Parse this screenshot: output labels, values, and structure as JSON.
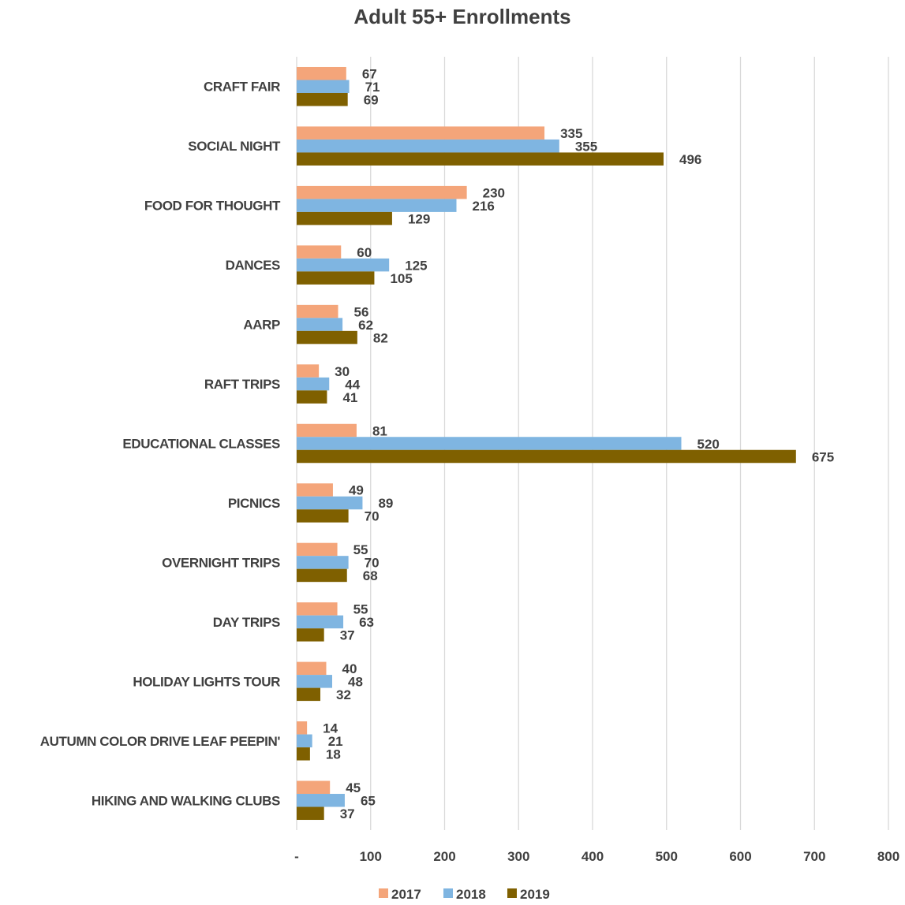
{
  "chart_data": {
    "type": "bar",
    "orientation": "horizontal",
    "title": "Adult 55+ Enrollments",
    "categories": [
      "CRAFT FAIR",
      "SOCIAL NIGHT",
      "FOOD FOR THOUGHT",
      "DANCES",
      "AARP",
      "RAFT TRIPS",
      "EDUCATIONAL CLASSES",
      "PICNICS",
      "OVERNIGHT TRIPS",
      "DAY TRIPS",
      "HOLIDAY LIGHTS TOUR",
      "AUTUMN COLOR DRIVE LEAF PEEPIN'",
      "HIKING AND WALKING CLUBS"
    ],
    "series": [
      {
        "name": "2017",
        "color": "#F4A57A",
        "values": [
          67,
          335,
          230,
          60,
          56,
          30,
          81,
          49,
          55,
          55,
          40,
          14,
          45
        ]
      },
      {
        "name": "2018",
        "color": "#7FB5E1",
        "values": [
          71,
          355,
          216,
          125,
          62,
          44,
          520,
          89,
          70,
          63,
          48,
          21,
          65
        ]
      },
      {
        "name": "2019",
        "color": "#7F6000",
        "values": [
          69,
          496,
          129,
          105,
          82,
          41,
          675,
          70,
          68,
          37,
          32,
          18,
          37
        ]
      }
    ],
    "x_ticks": [
      "-",
      "100",
      "200",
      "300",
      "400",
      "500",
      "600",
      "700",
      "800"
    ],
    "xlim": [
      0,
      800
    ],
    "grid": "vertical",
    "legend_position": "bottom",
    "data_labels": true,
    "colors": {
      "grid": "#D9D9D9",
      "text": "#404040"
    }
  }
}
